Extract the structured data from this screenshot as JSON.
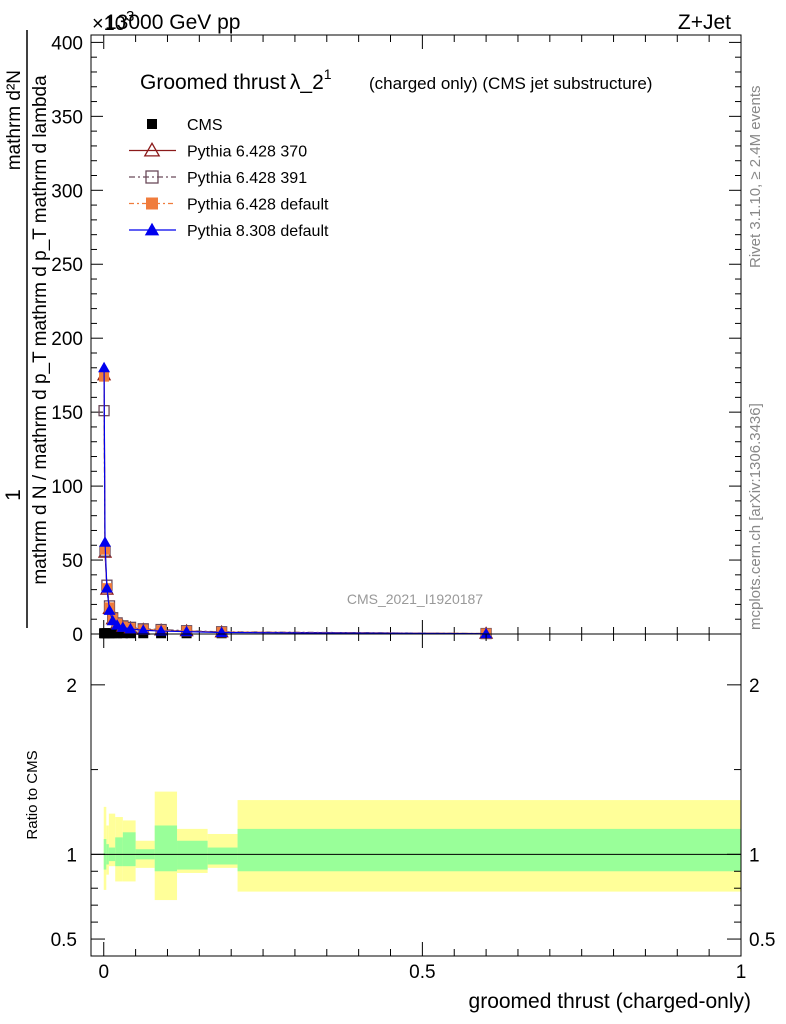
{
  "header": {
    "energy": "13000 GeV pp",
    "process": "Z+Jet",
    "exponent": "×10",
    "exponent_power": "3"
  },
  "side_labels": {
    "rivet": "Rivet 3.1.10, ≥ 2.4M events",
    "mcplots": "mcplots.cern.ch [arXiv:1306.3436]"
  },
  "plot_title": {
    "main": "Groomed thrust",
    "lambda": "λ_2",
    "sup": "1",
    "suffix": "(charged only) (CMS jet substructure)"
  },
  "analysis_id": "CMS_2021_I1920187",
  "y_label_main": {
    "numerator": "mathrm d²N",
    "denominator": "mathrm d N / mathrm d p_T mathrm d p_T mathrm d lambda",
    "prefix": "1"
  },
  "y_label_ratio": "Ratio to CMS",
  "x_label": "groomed thrust (charged-only)",
  "colors": {
    "cms": "#000000",
    "p370": "#8b1a1a",
    "p391": "#6b4a5a",
    "p6def": "#f07c3c",
    "p8def": "#0000ee",
    "band_inner": "#99ff99",
    "band_outer": "#ffff99"
  },
  "chart_data": [
    {
      "type": "line",
      "x_range": [
        -0.02,
        1.0
      ],
      "ylim": [
        0,
        405
      ],
      "y_multiplier": 1000,
      "y_ticks": [
        0,
        50,
        100,
        150,
        200,
        250,
        300,
        350,
        400
      ],
      "x_ticks": [
        0,
        0.5,
        1
      ],
      "x_tick_labels": [
        "0",
        "0.5",
        "1"
      ],
      "legend_position": "top-left",
      "series": [
        {
          "name": "CMS",
          "marker": "square",
          "x": [
            0.0005,
            0.002,
            0.005,
            0.009,
            0.014,
            0.021,
            0.03,
            0.042,
            0.062,
            0.09,
            0.13,
            0.185,
            0.6
          ],
          "y": [
            0.5,
            0.5,
            0.5,
            0.5,
            0.5,
            0.5,
            0.5,
            0.5,
            0.5,
            0.5,
            0.5,
            0.5,
            0.5
          ]
        },
        {
          "name": "Pythia 6.428 370",
          "marker": "triangle-open",
          "x": [
            0.0005,
            0.002,
            0.005,
            0.009,
            0.014,
            0.021,
            0.03,
            0.042,
            0.062,
            0.09,
            0.13,
            0.185,
            0.6
          ],
          "y": [
            175,
            55,
            30,
            17,
            10,
            7,
            5,
            4,
            3,
            2.5,
            2,
            1.2,
            0.3
          ]
        },
        {
          "name": "Pythia 6.428 391",
          "marker": "square-open",
          "x": [
            0.0005,
            0.002,
            0.005,
            0.009,
            0.014,
            0.021,
            0.03,
            0.042,
            0.062,
            0.09,
            0.13,
            0.185,
            0.6
          ],
          "y": [
            151,
            56,
            33,
            19,
            11,
            7.5,
            5.5,
            4.5,
            3.5,
            3,
            2.2,
            1.5,
            0.3
          ]
        },
        {
          "name": "Pythia 6.428 default",
          "marker": "square-filled",
          "x": [
            0.0005,
            0.002,
            0.005,
            0.009,
            0.014,
            0.021,
            0.03,
            0.042,
            0.062,
            0.09,
            0.13,
            0.185,
            0.6
          ],
          "y": [
            174,
            57,
            31,
            18,
            10.5,
            7,
            5,
            4,
            3,
            2.5,
            2,
            1.3,
            0.3
          ]
        },
        {
          "name": "Pythia 8.308 default",
          "marker": "triangle-filled",
          "x": [
            0.0005,
            0.002,
            0.005,
            0.009,
            0.014,
            0.021,
            0.03,
            0.042,
            0.062,
            0.09,
            0.13,
            0.185,
            0.6
          ],
          "y": [
            180,
            62,
            31,
            16,
            9,
            6,
            4.5,
            3.5,
            2.5,
            2,
            1.6,
            1,
            0.2
          ]
        }
      ]
    },
    {
      "type": "area",
      "x_range": [
        -0.02,
        1.0
      ],
      "ylim": [
        0.4,
        2.3
      ],
      "y_ticks": [
        0.5,
        1,
        2
      ],
      "y_tick_labels": [
        "0.5",
        "1",
        "2"
      ],
      "x_ticks": [
        0,
        0.5,
        1
      ],
      "x_tick_labels": [
        "0",
        "0.5",
        "1"
      ],
      "reference_line": 1,
      "bins": [
        {
          "lo": 0.0,
          "hi": 0.004,
          "inner": [
            0.91,
            1.09
          ],
          "outer": [
            0.79,
            1.28
          ]
        },
        {
          "lo": 0.004,
          "hi": 0.008,
          "inner": [
            0.94,
            1.06
          ],
          "outer": [
            0.88,
            1.17
          ]
        },
        {
          "lo": 0.008,
          "hi": 0.018,
          "inner": [
            0.96,
            1.04
          ],
          "outer": [
            0.93,
            1.24
          ]
        },
        {
          "lo": 0.018,
          "hi": 0.03,
          "inner": [
            0.93,
            1.1
          ],
          "outer": [
            0.84,
            1.22
          ]
        },
        {
          "lo": 0.03,
          "hi": 0.05,
          "inner": [
            0.93,
            1.13
          ],
          "outer": [
            0.84,
            1.2
          ]
        },
        {
          "lo": 0.05,
          "hi": 0.08,
          "inner": [
            0.97,
            1.03
          ],
          "outer": [
            0.92,
            1.08
          ]
        },
        {
          "lo": 0.08,
          "hi": 0.115,
          "inner": [
            0.9,
            1.17
          ],
          "outer": [
            0.73,
            1.37
          ]
        },
        {
          "lo": 0.115,
          "hi": 0.163,
          "inner": [
            0.91,
            1.08
          ],
          "outer": [
            0.89,
            1.15
          ]
        },
        {
          "lo": 0.163,
          "hi": 0.21,
          "inner": [
            0.94,
            1.04
          ],
          "outer": [
            0.92,
            1.12
          ]
        },
        {
          "lo": 0.21,
          "hi": 1.0,
          "inner": [
            0.9,
            1.15
          ],
          "outer": [
            0.78,
            1.32
          ]
        }
      ]
    }
  ]
}
